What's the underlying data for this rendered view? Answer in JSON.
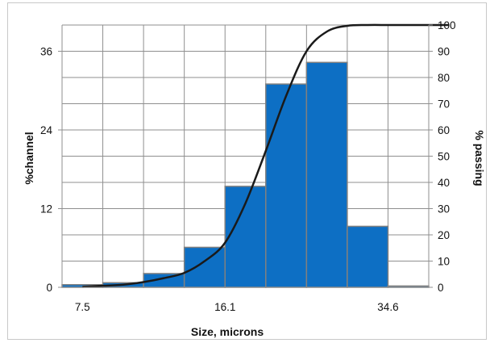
{
  "chart_data": {
    "type": "bar",
    "title": "",
    "xlabel": "Size, microns",
    "ylabel_left": "%channel",
    "ylabel_right": "% passing",
    "x_tick_labels": [
      "7.5",
      "16.1",
      "34.6"
    ],
    "left_axis": {
      "ylim": [
        0,
        40
      ],
      "ticks": [
        0,
        12,
        24,
        36
      ]
    },
    "right_axis": {
      "ylim": [
        0,
        100
      ],
      "ticks": [
        0,
        10,
        20,
        30,
        40,
        50,
        60,
        70,
        80,
        90,
        100
      ]
    },
    "grid": true,
    "legend": "none",
    "bars": {
      "bin_index_range": [
        0,
        9
      ],
      "values": [
        0.4,
        0.7,
        2.1,
        6.1,
        15.4,
        31.0,
        34.3,
        9.3,
        0.2
      ]
    },
    "cumulative_passing": {
      "x_bin_index": [
        0.5,
        1.0,
        1.5,
        2.0,
        2.5,
        3.0,
        3.5,
        4.0,
        4.5,
        5.0,
        5.5,
        6.0,
        6.5,
        7.0,
        7.5,
        8.0,
        8.5,
        9.0,
        9.5
      ],
      "y_percent": [
        0.2,
        0.6,
        1.0,
        2.0,
        3.5,
        5.5,
        10.0,
        17.0,
        32.0,
        52.0,
        73.0,
        90.0,
        97.5,
        99.7,
        100.0,
        100.0,
        100.0,
        100.0,
        100.0
      ]
    },
    "colors": {
      "bar_fill": "#0d6fc4",
      "bar_stroke": "#808080",
      "curve": "#1a1a1a",
      "grid": "#8f8f8f",
      "axis": "#8f8f8f"
    }
  }
}
